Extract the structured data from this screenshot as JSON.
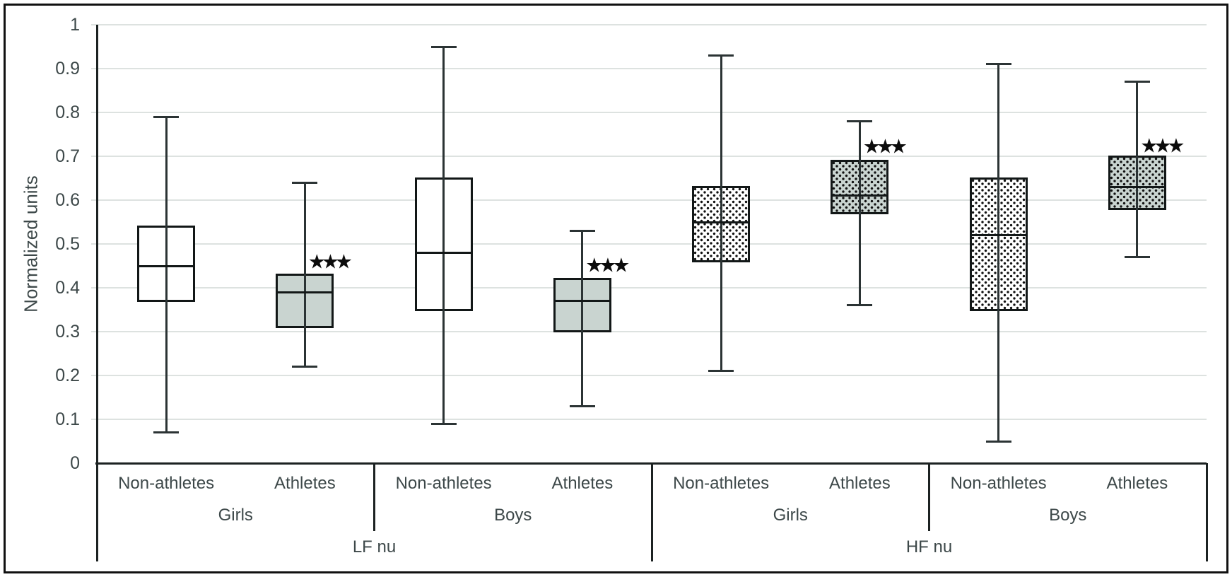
{
  "figure": {
    "ylabel": "Normalized units",
    "significance_marker": "★★★"
  },
  "chart_data": {
    "type": "boxplot",
    "title": "",
    "xlabel": "",
    "ylabel": "Normalized units",
    "ylim": [
      0,
      1
    ],
    "grid": true,
    "legend_position": "none",
    "ytick_labels": [
      "0",
      "0.1",
      "0.2",
      "0.3",
      "0.4",
      "0.5",
      "0.6",
      "0.7",
      "0.8",
      "0.9",
      "1"
    ],
    "ytick_values": [
      0,
      0.1,
      0.2,
      0.3,
      0.4,
      0.5,
      0.6,
      0.7,
      0.8,
      0.9,
      1
    ],
    "categories_level1": [
      "Non-athletes",
      "Athletes",
      "Non-athletes",
      "Athletes",
      "Non-athletes",
      "Athletes",
      "Non-athletes",
      "Athletes"
    ],
    "categories_level2": [
      {
        "label": "Girls",
        "span": 2
      },
      {
        "label": "Boys",
        "span": 2
      },
      {
        "label": "Girls",
        "span": 2
      },
      {
        "label": "Boys",
        "span": 2
      }
    ],
    "categories_level3": [
      {
        "label": "LF nu",
        "span": 4
      },
      {
        "label": "HF nu",
        "span": 4
      }
    ],
    "series": [
      {
        "band": "LF nu",
        "sex": "Girls",
        "group": "Non-athletes",
        "whisker_min": 0.07,
        "q1": 0.37,
        "median": 0.45,
        "q3": 0.54,
        "whisker_max": 0.79,
        "fill": "white",
        "pattern": "none",
        "significance": null,
        "significance_y": null
      },
      {
        "band": "LF nu",
        "sex": "Girls",
        "group": "Athletes",
        "whisker_min": 0.22,
        "q1": 0.31,
        "median": 0.39,
        "q3": 0.43,
        "whisker_max": 0.64,
        "fill": "gray",
        "pattern": "none",
        "significance": "★★★",
        "significance_y": 0.46
      },
      {
        "band": "LF nu",
        "sex": "Boys",
        "group": "Non-athletes",
        "whisker_min": 0.09,
        "q1": 0.35,
        "median": 0.48,
        "q3": 0.65,
        "whisker_max": 0.95,
        "fill": "white",
        "pattern": "none",
        "significance": null,
        "significance_y": null
      },
      {
        "band": "LF nu",
        "sex": "Boys",
        "group": "Athletes",
        "whisker_min": 0.13,
        "q1": 0.3,
        "median": 0.37,
        "q3": 0.42,
        "whisker_max": 0.53,
        "fill": "gray",
        "pattern": "none",
        "significance": "★★★",
        "significance_y": 0.452
      },
      {
        "band": "HF nu",
        "sex": "Girls",
        "group": "Non-athletes",
        "whisker_min": 0.21,
        "q1": 0.46,
        "median": 0.55,
        "q3": 0.63,
        "whisker_max": 0.93,
        "fill": "white",
        "pattern": "dots",
        "significance": null,
        "significance_y": null
      },
      {
        "band": "HF nu",
        "sex": "Girls",
        "group": "Athletes",
        "whisker_min": 0.36,
        "q1": 0.57,
        "median": 0.61,
        "q3": 0.69,
        "whisker_max": 0.78,
        "fill": "gray",
        "pattern": "dots",
        "significance": "★★★",
        "significance_y": 0.722
      },
      {
        "band": "HF nu",
        "sex": "Boys",
        "group": "Non-athletes",
        "whisker_min": 0.05,
        "q1": 0.35,
        "median": 0.52,
        "q3": 0.65,
        "whisker_max": 0.91,
        "fill": "white",
        "pattern": "dots",
        "significance": null,
        "significance_y": null
      },
      {
        "band": "HF nu",
        "sex": "Boys",
        "group": "Athletes",
        "whisker_min": 0.47,
        "q1": 0.58,
        "median": 0.63,
        "q3": 0.7,
        "whisker_max": 0.87,
        "fill": "gray",
        "pattern": "dots",
        "significance": "★★★",
        "significance_y": 0.725
      }
    ],
    "colors": {
      "athlete_fill": "#c9d4d0",
      "non_athlete_fill": "#ffffff",
      "gridline": "#dde2e0",
      "axis": "#1c2222",
      "whisker": "#2b3334",
      "box_border": "#121717",
      "text": "#3d4849",
      "pattern_dot": "#111111",
      "stars": "#0c0c0c"
    }
  }
}
